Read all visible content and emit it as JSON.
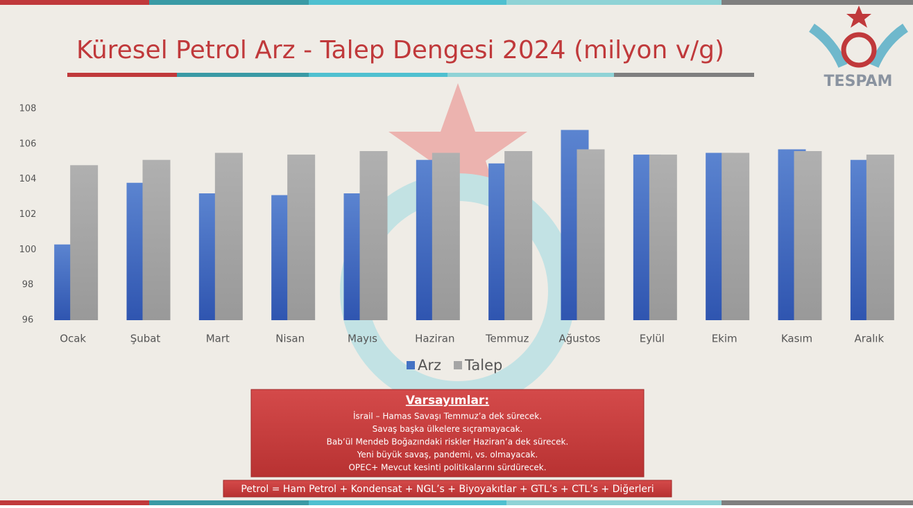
{
  "chart_data": {
    "type": "bar",
    "title": "Küresel Petrol Arz - Talep Dengesi 2024 (milyon v/g)",
    "categories": [
      "Ocak",
      "Şubat",
      "Mart",
      "Nisan",
      "Mayıs",
      "Haziran",
      "Temmuz",
      "Ağustos",
      "Eylül",
      "Ekim",
      "Kasım",
      "Aralık"
    ],
    "series": [
      {
        "name": "Arz",
        "color": "#4472c4",
        "values": [
          100.3,
          103.8,
          103.2,
          103.1,
          103.2,
          105.1,
          104.9,
          106.8,
          105.4,
          105.5,
          105.7,
          105.1
        ]
      },
      {
        "name": "Talep",
        "color": "#a5a5a5",
        "values": [
          104.8,
          105.1,
          105.5,
          105.4,
          105.6,
          105.5,
          105.6,
          105.7,
          105.4,
          105.5,
          105.6,
          105.4
        ]
      }
    ],
    "ylim": [
      96,
      108
    ],
    "yticks": [
      96,
      98,
      100,
      102,
      104,
      106,
      108
    ],
    "grid": false,
    "legend": "bottom"
  },
  "logo": "TESPAM",
  "assumptions": {
    "title": "Varsayımlar:",
    "lines": [
      "İsrail – Hamas Savaşı Temmuz’a dek sürecek.",
      "Savaş başka ülkelere sıçramayacak.",
      "Bab’ül Mendeb Boğazındaki riskler Haziran’a dek sürecek.",
      "Yeni büyük savaş, pandemi, vs. olmayacak.",
      "OPEC+ Mevcut kesinti politikalarını sürdürecek."
    ]
  },
  "footer": "Petrol = Ham Petrol + Kondensat + NGL’s + Biyoyakıtlar + GTL’s + CTL’s + Diğerleri"
}
